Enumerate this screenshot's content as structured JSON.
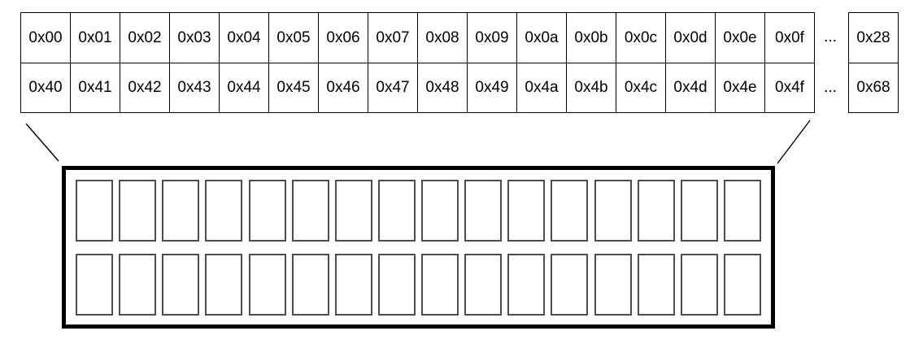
{
  "address_table": {
    "rows": [
      {
        "cells": [
          "0x00",
          "0x01",
          "0x02",
          "0x03",
          "0x04",
          "0x05",
          "0x06",
          "0x07",
          "0x08",
          "0x09",
          "0x0a",
          "0x0b",
          "0x0c",
          "0x0d",
          "0x0e",
          "0x0f"
        ],
        "ellipsis": "...",
        "overflow_cell": "0x28"
      },
      {
        "cells": [
          "0x40",
          "0x41",
          "0x42",
          "0x43",
          "0x44",
          "0x45",
          "0x46",
          "0x47",
          "0x48",
          "0x49",
          "0x4a",
          "0x4b",
          "0x4c",
          "0x4d",
          "0x4e",
          "0x4f"
        ],
        "ellipsis": "...",
        "overflow_cell": "0x68"
      }
    ]
  },
  "bank_box": {
    "rows": 2,
    "slots_per_row": 16
  },
  "colors": {
    "table_border": "#000000",
    "slot_border": "#4d4d4d",
    "box_border": "#000000",
    "background": "#ffffff",
    "text": "#000000"
  }
}
